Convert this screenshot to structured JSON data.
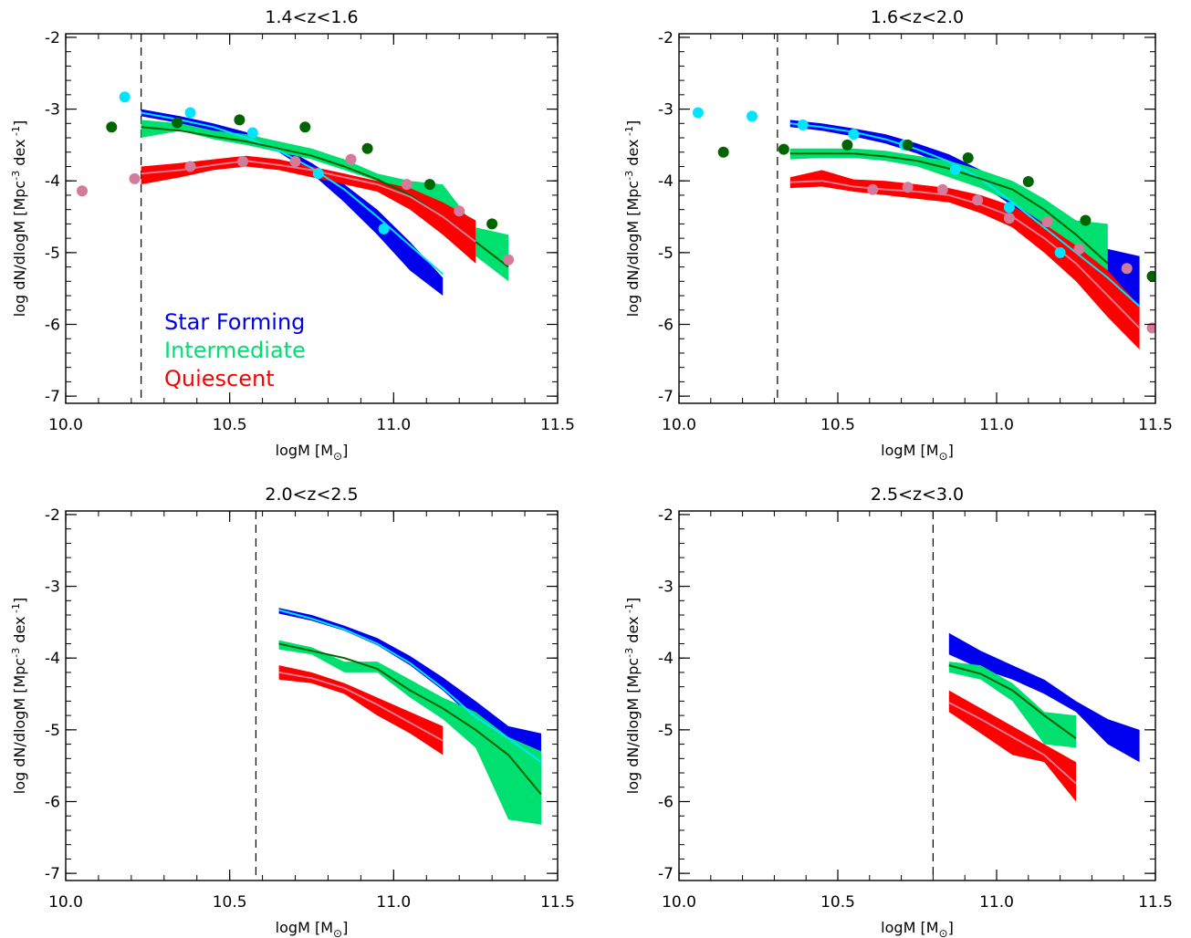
{
  "figure": {
    "background": "#ffffff"
  },
  "colors": {
    "star_forming_band": "#0000ee",
    "star_forming_line": "#00e5ff",
    "intermediate_band": "#00e070",
    "intermediate_line": "#006400",
    "quiescent_band": "#ff0000",
    "quiescent_line": "#e07890",
    "axes": "#000000"
  },
  "legend": {
    "placement": "lower-left of top-left panel",
    "entries": [
      {
        "label": "Star Forming",
        "color": "#0000ee"
      },
      {
        "label": "Intermediate",
        "color": "#00e070"
      },
      {
        "label": "Quiescent",
        "color": "#ff0000"
      }
    ]
  },
  "chart_data": [
    {
      "type": "area",
      "title": "1.4<z<1.6",
      "xlabel": "logM [M",
      "xlabel_sub": "⊙",
      "xlabel_close": "]",
      "ylabel": "log dN/dlogM [Mpc",
      "ylabel_sup": "-3",
      "ylabel_mid": " dex",
      "ylabel_sup2": " -1",
      "ylabel_close": "]",
      "xlim": [
        10.0,
        11.5
      ],
      "ylim": [
        -7.1,
        -1.95
      ],
      "xticks": [
        "10.0",
        "10.5",
        "11.0",
        "11.5"
      ],
      "yticks": [
        "-2",
        "-3",
        "-4",
        "-5",
        "-6",
        "-7"
      ],
      "vline": 10.23,
      "series": [
        {
          "name": "Star Forming",
          "band_color": "#0000ee",
          "line_color": "#00e5ff",
          "x": [
            10.23,
            10.35,
            10.45,
            10.55,
            10.65,
            10.75,
            10.85,
            10.95,
            11.05,
            11.15
          ],
          "upper": [
            -3.0,
            -3.1,
            -3.2,
            -3.32,
            -3.5,
            -3.75,
            -4.05,
            -4.4,
            -4.85,
            -5.35
          ],
          "lower": [
            -3.1,
            -3.2,
            -3.3,
            -3.45,
            -3.6,
            -3.9,
            -4.3,
            -4.75,
            -5.25,
            -5.6
          ],
          "line": [
            -3.05,
            -3.15,
            -3.25,
            -3.4,
            -3.58,
            -3.82,
            -4.12,
            -4.5,
            -4.9,
            -5.3
          ]
        },
        {
          "name": "Intermediate",
          "band_color": "#00e070",
          "line_color": "#006400",
          "x": [
            10.23,
            10.35,
            10.45,
            10.55,
            10.65,
            10.75,
            10.85,
            10.95,
            11.05,
            11.15,
            11.25,
            11.35
          ],
          "upper": [
            -3.15,
            -3.2,
            -3.3,
            -3.35,
            -3.45,
            -3.55,
            -3.7,
            -3.9,
            -4.0,
            -4.05,
            -4.65,
            -4.75
          ],
          "lower": [
            -3.4,
            -3.3,
            -3.42,
            -3.5,
            -3.6,
            -3.7,
            -3.85,
            -4.0,
            -4.25,
            -4.6,
            -5.05,
            -5.4
          ],
          "line": [
            -3.25,
            -3.3,
            -3.38,
            -3.45,
            -3.55,
            -3.65,
            -3.8,
            -3.98,
            -4.2,
            -4.5,
            -4.85,
            -5.2
          ]
        },
        {
          "name": "Quiescent",
          "band_color": "#ff0000",
          "line_color": "#e07890",
          "x": [
            10.23,
            10.35,
            10.45,
            10.55,
            10.65,
            10.75,
            10.85,
            10.95,
            11.05,
            11.15,
            11.25
          ],
          "upper": [
            -3.8,
            -3.75,
            -3.7,
            -3.65,
            -3.7,
            -3.8,
            -3.9,
            -4.0,
            -4.1,
            -4.3,
            -4.55
          ],
          "lower": [
            -4.05,
            -3.95,
            -3.85,
            -3.8,
            -3.85,
            -3.95,
            -4.05,
            -4.15,
            -4.4,
            -4.75,
            -5.15
          ],
          "line": [
            -3.9,
            -3.85,
            -3.78,
            -3.72,
            -3.78,
            -3.85,
            -3.95,
            -4.05,
            -4.22,
            -4.5,
            -4.85
          ]
        }
      ],
      "points": [
        {
          "series": "Star Forming",
          "color": "#00e5ff",
          "x": [
            10.18,
            10.38,
            10.57,
            10.77,
            10.97
          ],
          "y": [
            -2.83,
            -3.05,
            -3.33,
            -3.9,
            -4.67
          ]
        },
        {
          "series": "Intermediate",
          "color": "#006400",
          "x": [
            10.14,
            10.34,
            10.53,
            10.73,
            10.92,
            11.11,
            11.3
          ],
          "y": [
            -3.25,
            -3.19,
            -3.15,
            -3.25,
            -3.55,
            -4.05,
            -4.6
          ]
        },
        {
          "series": "Quiescent",
          "color": "#d47a9a",
          "x": [
            10.05,
            10.21,
            10.38,
            10.54,
            10.7,
            10.87,
            11.04,
            11.2,
            11.35
          ],
          "y": [
            -4.14,
            -3.97,
            -3.8,
            -3.73,
            -3.73,
            -3.7,
            -4.05,
            -4.42,
            -5.1
          ]
        }
      ]
    },
    {
      "type": "area",
      "title": "1.6<z<2.0",
      "xlabel": "logM [M",
      "xlabel_sub": "⊙",
      "xlabel_close": "]",
      "ylabel": "log dN/dlogM [Mpc",
      "ylabel_sup": "-3",
      "ylabel_mid": " dex",
      "ylabel_sup2": " -1",
      "ylabel_close": "]",
      "xlim": [
        10.0,
        11.5
      ],
      "ylim": [
        -7.1,
        -1.95
      ],
      "xticks": [
        "10.0",
        "10.5",
        "11.0",
        "11.5"
      ],
      "yticks": [
        "-2",
        "-3",
        "-4",
        "-5",
        "-6",
        "-7"
      ],
      "vline": 10.31,
      "series": [
        {
          "name": "Star Forming",
          "band_color": "#0000ee",
          "line_color": "#00e5ff",
          "x": [
            10.35,
            10.45,
            10.55,
            10.65,
            10.75,
            10.85,
            10.95,
            11.05,
            11.15,
            11.25,
            11.35,
            11.45
          ],
          "upper": [
            -3.15,
            -3.2,
            -3.27,
            -3.35,
            -3.48,
            -3.63,
            -3.85,
            -4.15,
            -4.5,
            -4.8,
            -4.95,
            -5.05
          ],
          "lower": [
            -3.25,
            -3.3,
            -3.38,
            -3.48,
            -3.62,
            -3.8,
            -4.05,
            -4.35,
            -4.7,
            -5.1,
            -5.4,
            -5.75
          ],
          "line": [
            -3.2,
            -3.25,
            -3.32,
            -3.42,
            -3.56,
            -3.73,
            -3.97,
            -4.3,
            -4.65,
            -5.0,
            -5.35,
            -5.75
          ]
        },
        {
          "name": "Intermediate",
          "band_color": "#00e070",
          "line_color": "#006400",
          "x": [
            10.35,
            10.45,
            10.55,
            10.65,
            10.75,
            10.85,
            10.95,
            11.05,
            11.15,
            11.25,
            11.35
          ],
          "upper": [
            -3.55,
            -3.55,
            -3.55,
            -3.58,
            -3.65,
            -3.72,
            -3.85,
            -4.0,
            -4.25,
            -4.55,
            -4.6
          ],
          "lower": [
            -3.7,
            -3.68,
            -3.68,
            -3.72,
            -3.8,
            -3.95,
            -4.1,
            -4.3,
            -4.6,
            -4.95,
            -5.3
          ],
          "line": [
            -3.62,
            -3.62,
            -3.62,
            -3.66,
            -3.72,
            -3.83,
            -3.97,
            -4.12,
            -4.4,
            -4.75,
            -5.15
          ]
        },
        {
          "name": "Quiescent",
          "band_color": "#ff0000",
          "line_color": "#e07890",
          "x": [
            10.35,
            10.45,
            10.55,
            10.65,
            10.75,
            10.85,
            10.95,
            11.05,
            11.15,
            11.25,
            11.35,
            11.45
          ],
          "upper": [
            -3.95,
            -3.85,
            -3.98,
            -4.0,
            -4.05,
            -4.1,
            -4.2,
            -4.35,
            -4.6,
            -4.9,
            -5.25,
            -5.75
          ],
          "lower": [
            -4.1,
            -4.08,
            -4.15,
            -4.2,
            -4.25,
            -4.3,
            -4.45,
            -4.65,
            -5.0,
            -5.4,
            -5.9,
            -6.35
          ],
          "line": [
            -4.02,
            -4.0,
            -4.08,
            -4.12,
            -4.15,
            -4.2,
            -4.33,
            -4.5,
            -4.8,
            -5.15,
            -5.6,
            -6.05
          ]
        }
      ],
      "points": [
        {
          "series": "Star Forming",
          "color": "#00e5ff",
          "x": [
            10.06,
            10.23,
            10.39,
            10.55,
            10.71,
            10.87,
            11.04,
            11.2
          ],
          "y": [
            -3.05,
            -3.1,
            -3.22,
            -3.35,
            -3.5,
            -3.84,
            -4.37,
            -5.0
          ]
        },
        {
          "series": "Intermediate",
          "color": "#006400",
          "x": [
            10.14,
            10.33,
            10.53,
            10.72,
            10.91,
            11.1,
            11.28,
            11.49
          ],
          "y": [
            -3.6,
            -3.56,
            -3.5,
            -3.5,
            -3.68,
            -4.01,
            -4.55,
            -5.33
          ]
        },
        {
          "series": "Quiescent",
          "color": "#d47a9a",
          "x": [
            10.61,
            10.72,
            10.83,
            10.94,
            11.04,
            11.16,
            11.26,
            11.41,
            11.49
          ],
          "y": [
            -4.12,
            -4.09,
            -4.12,
            -4.27,
            -4.52,
            -4.57,
            -4.95,
            -5.22,
            -6.05
          ]
        }
      ]
    },
    {
      "type": "area",
      "title": "2.0<z<2.5",
      "xlabel": "logM [M",
      "xlabel_sub": "⊙",
      "xlabel_close": "]",
      "ylabel": "log dN/dlogM [Mpc",
      "ylabel_sup": "-3",
      "ylabel_mid": " dex",
      "ylabel_sup2": " -1",
      "ylabel_close": "]",
      "xlim": [
        10.0,
        11.5
      ],
      "ylim": [
        -7.1,
        -1.95
      ],
      "xticks": [
        "10.0",
        "10.5",
        "11.0",
        "11.5"
      ],
      "yticks": [
        "-2",
        "-3",
        "-4",
        "-5",
        "-6",
        "-7"
      ],
      "vline": 10.58,
      "series": [
        {
          "name": "Star Forming",
          "band_color": "#0000ee",
          "line_color": "#00e5ff",
          "x": [
            10.65,
            10.75,
            10.85,
            10.95,
            11.05,
            11.15,
            11.25,
            11.35,
            11.45
          ],
          "upper": [
            -3.3,
            -3.4,
            -3.55,
            -3.72,
            -3.97,
            -4.27,
            -4.6,
            -4.95,
            -5.05
          ],
          "lower": [
            -3.38,
            -3.48,
            -3.62,
            -3.82,
            -4.1,
            -4.45,
            -4.87,
            -5.2,
            -5.35
          ],
          "line": [
            -3.33,
            -3.45,
            -3.6,
            -3.8,
            -4.07,
            -4.42,
            -4.82,
            -5.12,
            -5.45
          ]
        },
        {
          "name": "Intermediate",
          "band_color": "#00e070",
          "line_color": "#006400",
          "x": [
            10.65,
            10.75,
            10.85,
            10.95,
            11.05,
            11.15,
            11.25,
            11.35,
            11.45
          ],
          "upper": [
            -3.75,
            -3.85,
            -4.05,
            -4.05,
            -4.3,
            -4.55,
            -4.75,
            -5.1,
            -5.3
          ],
          "lower": [
            -3.88,
            -3.95,
            -4.2,
            -4.2,
            -4.55,
            -4.85,
            -5.25,
            -6.25,
            -6.32
          ],
          "line": [
            -3.8,
            -3.9,
            -4.0,
            -4.15,
            -4.45,
            -4.7,
            -5.0,
            -5.35,
            -5.9
          ]
        },
        {
          "name": "Quiescent",
          "band_color": "#ff0000",
          "line_color": "#e07890",
          "x": [
            10.65,
            10.75,
            10.85,
            10.95,
            11.05,
            11.15
          ],
          "upper": [
            -4.1,
            -4.2,
            -4.35,
            -4.55,
            -4.75,
            -4.95
          ],
          "lower": [
            -4.3,
            -4.35,
            -4.5,
            -4.8,
            -5.05,
            -5.35
          ],
          "line": [
            -4.2,
            -4.28,
            -4.42,
            -4.65,
            -4.9,
            -5.15
          ]
        }
      ],
      "points": []
    },
    {
      "type": "area",
      "title": "2.5<z<3.0",
      "xlabel": "logM [M",
      "xlabel_sub": "⊙",
      "xlabel_close": "]",
      "ylabel": "log dN/dlogM [Mpc",
      "ylabel_sup": "-3",
      "ylabel_mid": " dex",
      "ylabel_sup2": " -1",
      "ylabel_close": "]",
      "xlim": [
        10.0,
        11.5
      ],
      "ylim": [
        -7.1,
        -1.95
      ],
      "xticks": [
        "10.0",
        "10.5",
        "11.0",
        "11.5"
      ],
      "yticks": [
        "-2",
        "-3",
        "-4",
        "-5",
        "-6",
        "-7"
      ],
      "vline": 10.8,
      "series": [
        {
          "name": "Star Forming",
          "band_color": "#0000ee",
          "x": [
            10.85,
            10.95,
            11.05,
            11.15,
            11.25,
            11.35,
            11.45
          ],
          "upper": [
            -3.65,
            -3.9,
            -4.1,
            -4.3,
            -4.6,
            -4.85,
            -5.0
          ],
          "lower": [
            -3.95,
            -4.15,
            -4.3,
            -4.5,
            -4.75,
            -5.2,
            -5.45
          ]
        },
        {
          "name": "Intermediate",
          "band_color": "#00e070",
          "line_color": "#006400",
          "x": [
            10.85,
            10.95,
            11.05,
            11.15,
            11.25
          ],
          "upper": [
            -4.05,
            -4.1,
            -4.35,
            -4.75,
            -4.8
          ],
          "lower": [
            -4.2,
            -4.3,
            -4.6,
            -5.2,
            -5.25
          ],
          "line": [
            -4.1,
            -4.22,
            -4.45,
            -4.8,
            -5.12
          ]
        },
        {
          "name": "Quiescent",
          "band_color": "#ff0000",
          "line_color": "#e07890",
          "x": [
            10.85,
            10.95,
            11.05,
            11.15,
            11.25
          ],
          "upper": [
            -4.45,
            -4.7,
            -4.95,
            -5.2,
            -5.45
          ],
          "lower": [
            -4.75,
            -5.05,
            -5.35,
            -5.45,
            -6.0
          ],
          "line": [
            -4.62,
            -4.85,
            -5.1,
            -5.35,
            -5.75
          ]
        }
      ],
      "points": []
    }
  ]
}
